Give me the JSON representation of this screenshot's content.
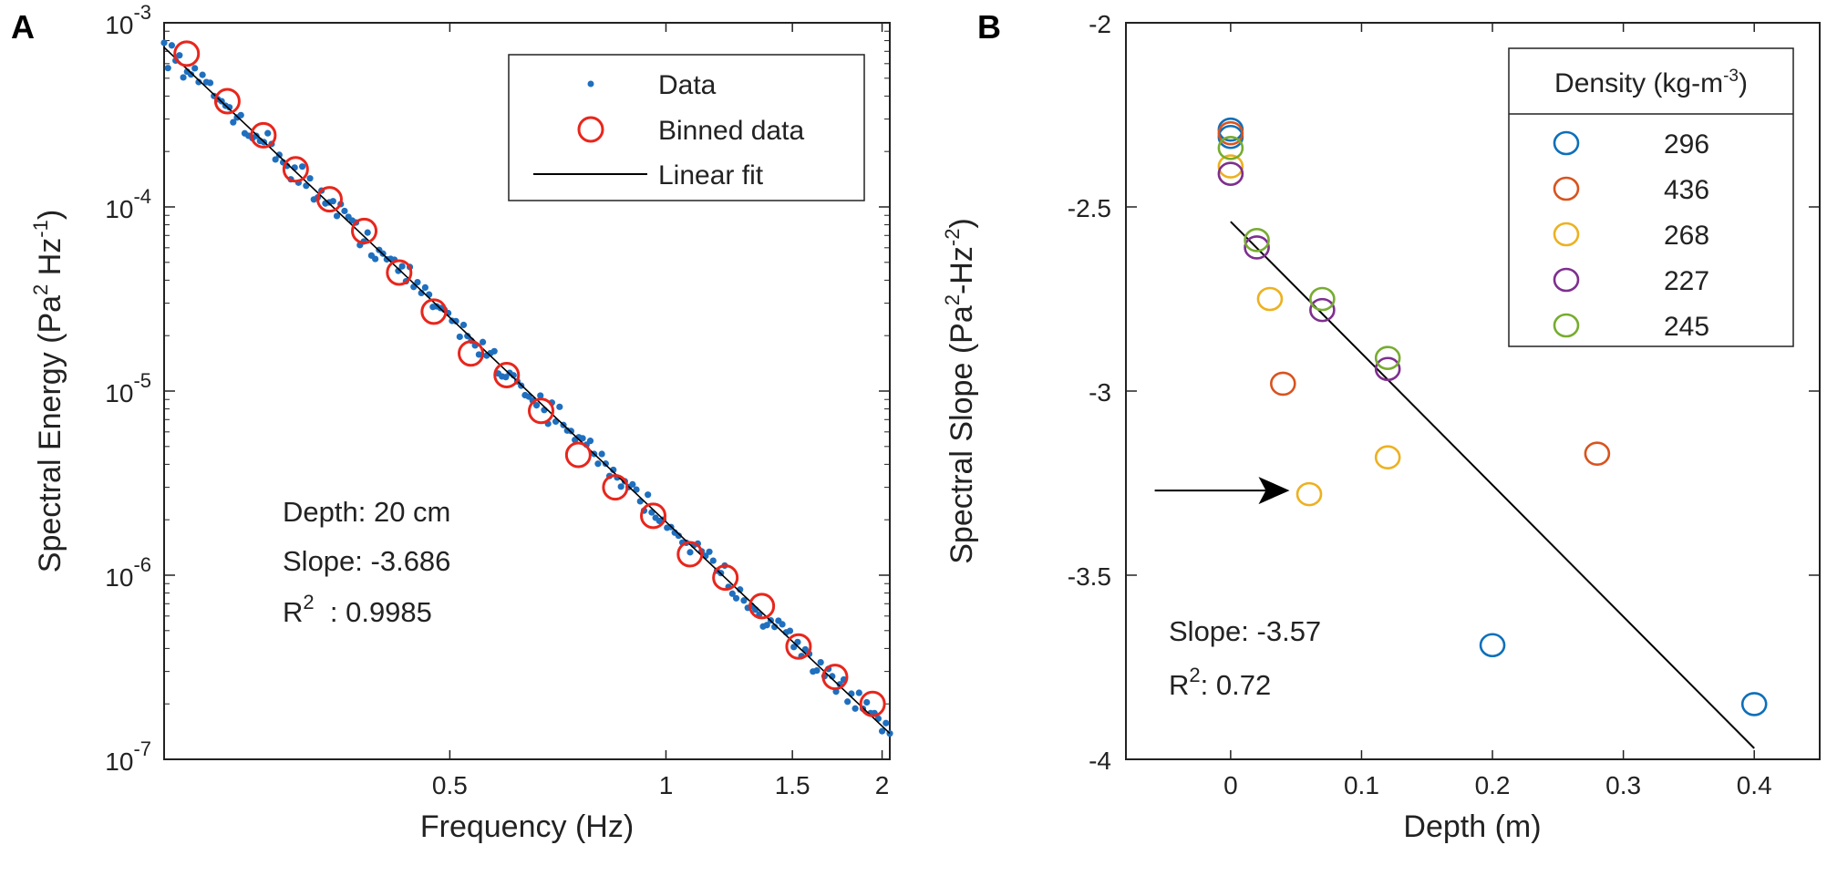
{
  "chart_data": [
    {
      "panel": "A",
      "type": "scatter",
      "xscale": "log",
      "yscale": "log",
      "xlabel_main": "Frequency (Hz)",
      "ylabel_parts": [
        "Spectral Energy (Pa",
        "2",
        " Hz",
        "-1",
        ")"
      ],
      "xlim": [
        0.2,
        2.05
      ],
      "ylim": [
        1e-07,
        0.001
      ],
      "x_ticks": [
        {
          "value": 0.5,
          "label": "0.5"
        },
        {
          "value": 1,
          "label": "1"
        },
        {
          "value": 1.5,
          "label": "1.5"
        },
        {
          "value": 2,
          "label": "2"
        }
      ],
      "y_ticks": [
        {
          "value": 0.001,
          "base": "10",
          "exp": "-3"
        },
        {
          "value": 0.0001,
          "base": "10",
          "exp": "-4"
        },
        {
          "value": 1e-05,
          "base": "10",
          "exp": "-5"
        },
        {
          "value": 1e-06,
          "base": "10",
          "exp": "-6"
        },
        {
          "value": 1e-07,
          "base": "10",
          "exp": "-7"
        }
      ],
      "fit": {
        "slope": -3.686,
        "x0": 0.2,
        "y0": 0.000735
      },
      "binned": [
        {
          "x": 0.215,
          "y": 0.00068
        },
        {
          "x": 0.245,
          "y": 0.000375
        },
        {
          "x": 0.275,
          "y": 0.000245
        },
        {
          "x": 0.305,
          "y": 0.00016
        },
        {
          "x": 0.34,
          "y": 0.00011
        },
        {
          "x": 0.38,
          "y": 7.4e-05
        },
        {
          "x": 0.425,
          "y": 4.4e-05
        },
        {
          "x": 0.475,
          "y": 2.7e-05
        },
        {
          "x": 0.535,
          "y": 1.6e-05
        },
        {
          "x": 0.6,
          "y": 1.22e-05
        },
        {
          "x": 0.67,
          "y": 7.8e-06
        },
        {
          "x": 0.755,
          "y": 4.5e-06
        },
        {
          "x": 0.85,
          "y": 3e-06
        },
        {
          "x": 0.96,
          "y": 2.1e-06
        },
        {
          "x": 1.08,
          "y": 1.3e-06
        },
        {
          "x": 1.21,
          "y": 9.7e-07
        },
        {
          "x": 1.36,
          "y": 6.8e-07
        },
        {
          "x": 1.53,
          "y": 4.1e-07
        },
        {
          "x": 1.72,
          "y": 2.8e-07
        },
        {
          "x": 1.94,
          "y": 2e-07
        }
      ],
      "raw_data_series": {
        "x_start": 0.2,
        "x_end": 2.05,
        "count": 190,
        "jitter_log10": 0.045,
        "model": "linear fit in log-log space plus noise"
      },
      "legend": {
        "position": "top-right",
        "entries": [
          {
            "label": "Data",
            "marker": "dot",
            "color": "#1f6fbf"
          },
          {
            "label": "Binned data",
            "marker": "circle",
            "color": "#e8261c"
          },
          {
            "label": "Linear fit",
            "marker": "line",
            "color": "#000000"
          }
        ]
      },
      "annotations": [
        {
          "name": "depth-annotation",
          "text": "Depth: 20 cm"
        },
        {
          "name": "slope-annotation",
          "text": "Slope: -3.686"
        },
        {
          "name": "r2-annotation",
          "base": "R",
          "exp": "2",
          "rest": "  : 0.9985"
        }
      ]
    },
    {
      "panel": "B",
      "type": "scatter",
      "xlabel_main": "Depth (m)",
      "ylabel_parts": [
        "Spectral Slope (Pa",
        "2",
        "-Hz",
        "-2",
        ")"
      ],
      "xlim": [
        -0.08,
        0.45
      ],
      "ylim": [
        -4,
        -2
      ],
      "x_ticks": [
        {
          "value": 0,
          "label": "0"
        },
        {
          "value": 0.1,
          "label": "0.1"
        },
        {
          "value": 0.2,
          "label": "0.2"
        },
        {
          "value": 0.3,
          "label": "0.3"
        },
        {
          "value": 0.4,
          "label": "0.4"
        }
      ],
      "y_ticks": [
        {
          "value": -2,
          "label": "-2"
        },
        {
          "value": -2.5,
          "label": "-2.5"
        },
        {
          "value": -3,
          "label": "-3"
        },
        {
          "value": -3.5,
          "label": "-3.5"
        },
        {
          "value": -4,
          "label": "-4"
        }
      ],
      "legend": {
        "position": "top-right",
        "title_parts": [
          "Density (kg-m",
          "-3",
          ")"
        ]
      },
      "series": [
        {
          "name": "296",
          "color": "#0d6fba",
          "points": [
            [
              0,
              -2.29
            ],
            [
              0,
              -2.31
            ],
            [
              0.2,
              -3.69
            ],
            [
              0.4,
              -3.85
            ]
          ]
        },
        {
          "name": "436",
          "color": "#d9531e",
          "points": [
            [
              0,
              -2.3
            ],
            [
              0.04,
              -2.98
            ],
            [
              0.28,
              -3.17
            ]
          ]
        },
        {
          "name": "268",
          "color": "#edb120",
          "points": [
            [
              0,
              -2.39
            ],
            [
              0.03,
              -2.75
            ],
            [
              0.06,
              -3.28
            ],
            [
              0.12,
              -3.18
            ]
          ]
        },
        {
          "name": "227",
          "color": "#7e2f8e",
          "points": [
            [
              0,
              -2.41
            ],
            [
              0.02,
              -2.61
            ],
            [
              0.07,
              -2.78
            ],
            [
              0.12,
              -2.94
            ]
          ]
        },
        {
          "name": "245",
          "color": "#77ac30",
          "points": [
            [
              0,
              -2.34
            ],
            [
              0.02,
              -2.59
            ],
            [
              0.07,
              -2.75
            ],
            [
              0.12,
              -2.91
            ]
          ]
        }
      ],
      "fit_line": {
        "x": [
          0,
          0.4
        ],
        "y": [
          -2.54,
          -3.97
        ]
      },
      "arrow": {
        "x_from": -0.058,
        "x_to": 0.045,
        "y": -3.27
      },
      "annotations": [
        {
          "name": "slope-annotation-b",
          "text": "Slope: -3.57"
        },
        {
          "name": "r2-annotation-b",
          "base": "R",
          "exp": "2",
          "rest": ": 0.72"
        }
      ]
    }
  ]
}
